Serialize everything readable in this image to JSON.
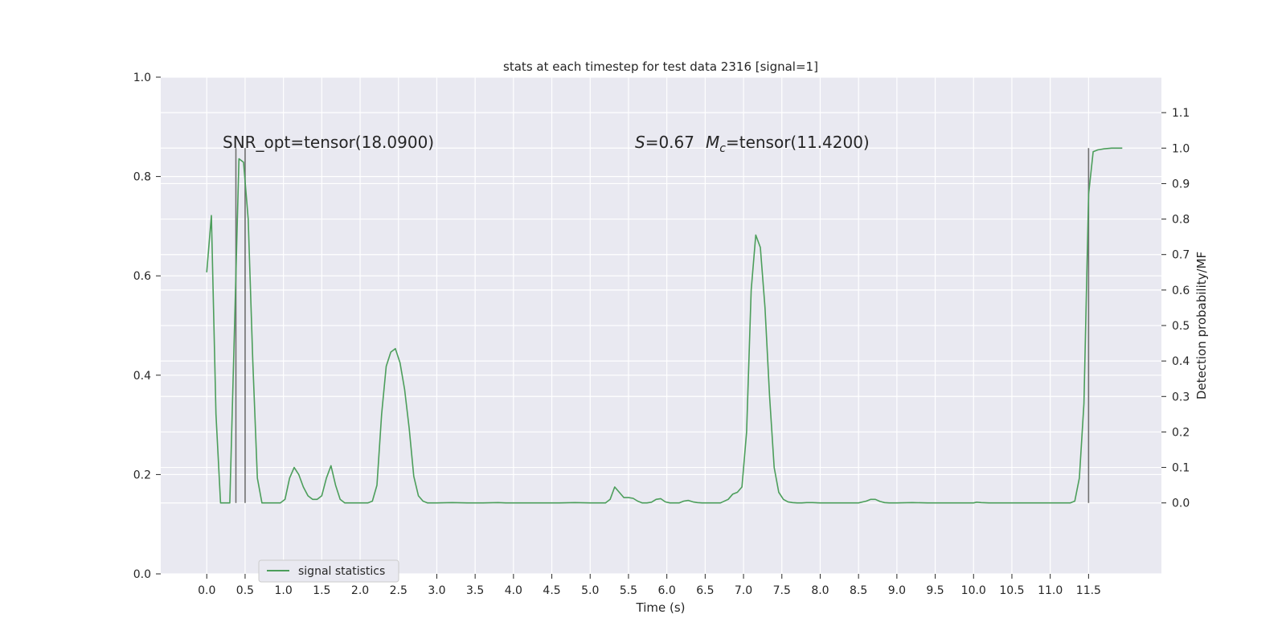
{
  "chart_data": {
    "type": "line",
    "title": "stats at each timestep for test data 2316 [signal=1]",
    "xlabel": "Time (s)",
    "ylabel_left": "",
    "ylabel_right": "Detection probability/MF",
    "xlim": [
      -0.6,
      12.45
    ],
    "ylim_left": [
      0,
      1
    ],
    "ylim_right": [
      -0.2,
      1.2
    ],
    "x_ticks": [
      "0.0",
      "0.5",
      "1.0",
      "1.5",
      "2.0",
      "2.5",
      "3.0",
      "3.5",
      "4.0",
      "4.5",
      "5.0",
      "5.5",
      "6.0",
      "6.5",
      "7.0",
      "7.5",
      "8.0",
      "8.5",
      "9.0",
      "9.5",
      "10.0",
      "10.5",
      "11.0",
      "11.5"
    ],
    "y_ticks_left": [
      "0.0",
      "0.2",
      "0.4",
      "0.6",
      "0.8",
      "1.0"
    ],
    "y_ticks_right": [
      "0.0",
      "0.1",
      "0.2",
      "0.3",
      "0.4",
      "0.5",
      "0.6",
      "0.7",
      "0.8",
      "0.9",
      "1.0",
      "1.1"
    ],
    "grid": true,
    "legend_position": "bottom-left",
    "colors": {
      "series": "#4c9e5b",
      "vline": "#707070",
      "plot_bg": "#e9e9f1",
      "grid": "#ffffff"
    },
    "annotations": {
      "snr": "SNR_opt=tensor(18.0900)",
      "s_part": "=0.67",
      "s_sym": "S",
      "mc_sym": "M",
      "mc_sub": "c",
      "mc_part": "=tensor(11.4200)"
    },
    "vlines": [
      {
        "x": 0.38,
        "y0": 0.0,
        "y1": 1.0
      },
      {
        "x": 0.5,
        "y0": 0.0,
        "y1": 1.0
      },
      {
        "x": 11.5,
        "y0": 0.0,
        "y1": 1.0
      }
    ],
    "series": [
      {
        "name": "signal statistics",
        "axis": "right",
        "x": [
          0.0,
          0.06,
          0.12,
          0.18,
          0.24,
          0.3,
          0.36,
          0.42,
          0.48,
          0.54,
          0.6,
          0.66,
          0.72,
          0.78,
          0.84,
          0.9,
          0.96,
          1.02,
          1.08,
          1.14,
          1.2,
          1.26,
          1.32,
          1.38,
          1.44,
          1.5,
          1.56,
          1.62,
          1.68,
          1.74,
          1.8,
          1.86,
          1.92,
          1.98,
          2.04,
          2.1,
          2.16,
          2.22,
          2.28,
          2.34,
          2.4,
          2.46,
          2.52,
          2.58,
          2.64,
          2.7,
          2.76,
          2.82,
          2.88,
          2.94,
          3.0,
          3.2,
          3.4,
          3.6,
          3.8,
          3.9,
          4.0,
          4.2,
          4.4,
          4.6,
          4.8,
          5.0,
          5.1,
          5.2,
          5.26,
          5.32,
          5.38,
          5.44,
          5.5,
          5.56,
          5.62,
          5.68,
          5.74,
          5.8,
          5.86,
          5.92,
          5.98,
          6.04,
          6.1,
          6.16,
          6.22,
          6.28,
          6.34,
          6.4,
          6.46,
          6.52,
          6.6,
          6.7,
          6.8,
          6.86,
          6.92,
          6.98,
          7.04,
          7.1,
          7.16,
          7.22,
          7.28,
          7.34,
          7.4,
          7.46,
          7.52,
          7.58,
          7.64,
          7.7,
          7.76,
          7.82,
          7.9,
          8.0,
          8.2,
          8.4,
          8.5,
          8.6,
          8.66,
          8.72,
          8.78,
          8.84,
          8.9,
          9.0,
          9.2,
          9.4,
          9.6,
          9.8,
          10.0,
          10.04,
          10.1,
          10.2,
          10.4,
          10.6,
          10.8,
          11.0,
          11.1,
          11.2,
          11.26,
          11.32,
          11.38,
          11.44,
          11.5,
          11.56,
          11.62,
          11.7,
          11.8,
          11.94
        ],
        "values": [
          0.65,
          0.81,
          0.25,
          0.0,
          0.0,
          0.0,
          0.48,
          0.97,
          0.96,
          0.8,
          0.4,
          0.07,
          0.0,
          0.0,
          0.0,
          0.0,
          0.0,
          0.01,
          0.07,
          0.1,
          0.08,
          0.045,
          0.02,
          0.01,
          0.01,
          0.02,
          0.07,
          0.105,
          0.05,
          0.01,
          0.0,
          0.0,
          0.0,
          0.0,
          0.0,
          0.0,
          0.005,
          0.05,
          0.25,
          0.385,
          0.425,
          0.435,
          0.395,
          0.32,
          0.21,
          0.075,
          0.02,
          0.005,
          0.0,
          0.0,
          0.0,
          0.001,
          0.0,
          0.0,
          0.001,
          0.0,
          0.0,
          0.0,
          0.0,
          0.0,
          0.001,
          0.0,
          0.0,
          0.0,
          0.01,
          0.045,
          0.03,
          0.015,
          0.015,
          0.013,
          0.005,
          0.0,
          0.0,
          0.002,
          0.01,
          0.012,
          0.003,
          0.0,
          0.0,
          0.0,
          0.005,
          0.007,
          0.003,
          0.001,
          0.0,
          0.0,
          0.0,
          0.0,
          0.01,
          0.025,
          0.03,
          0.045,
          0.2,
          0.6,
          0.755,
          0.72,
          0.55,
          0.3,
          0.1,
          0.03,
          0.01,
          0.003,
          0.001,
          0.0,
          0.0,
          0.001,
          0.001,
          0.0,
          0.0,
          0.0,
          0.0,
          0.005,
          0.01,
          0.01,
          0.004,
          0.001,
          0.0,
          0.0,
          0.001,
          0.0,
          0.0,
          0.0,
          0.0,
          0.002,
          0.001,
          0.0,
          0.0,
          0.0,
          0.0,
          0.0,
          0.0,
          0.0,
          0.0,
          0.005,
          0.07,
          0.28,
          0.87,
          0.99,
          0.995,
          0.998,
          1.0,
          1.0
        ]
      }
    ]
  }
}
